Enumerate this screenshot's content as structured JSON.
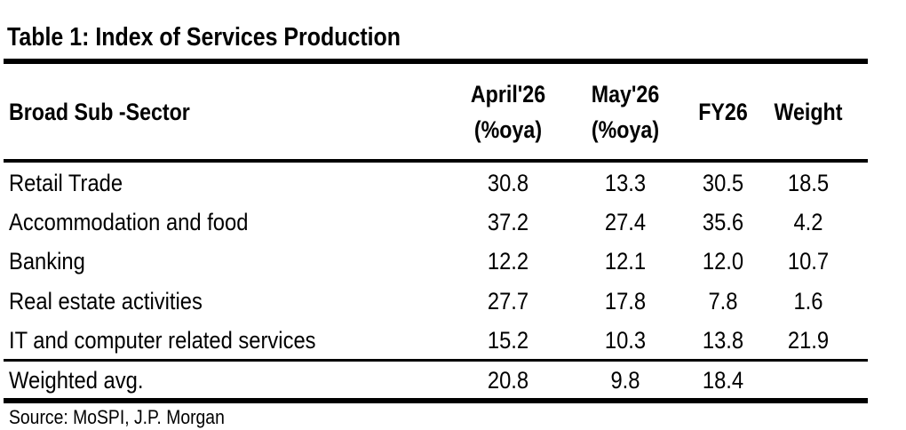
{
  "title": "Table 1: Index of Services Production",
  "columns": {
    "sector": "Broad Sub -Sector",
    "april": [
      "April'26",
      "(%oya)"
    ],
    "may": [
      "May'26",
      "(%oya)"
    ],
    "fy": "FY26",
    "weight": "Weight"
  },
  "rows": [
    {
      "label": "Retail Trade",
      "april": "30.8",
      "may": "13.3",
      "fy": "30.5",
      "weight": "18.5"
    },
    {
      "label": "Accommodation and food",
      "april": "37.2",
      "may": "27.4",
      "fy": "35.6",
      "weight": "4.2"
    },
    {
      "label": "Banking",
      "april": "12.2",
      "may": "12.1",
      "fy": "12.0",
      "weight": "10.7"
    },
    {
      "label": "Real estate activities",
      "april": "27.7",
      "may": "17.8",
      "fy": "7.8",
      "weight": "1.6"
    },
    {
      "label": "IT and computer related services",
      "april": "15.2",
      "may": "10.3",
      "fy": "13.8",
      "weight": "21.9"
    }
  ],
  "total": {
    "label": "Weighted avg.",
    "april": "20.8",
    "may": "9.8",
    "fy": "18.4",
    "weight": ""
  },
  "source": "Source: MoSPI, J.P. Morgan"
}
